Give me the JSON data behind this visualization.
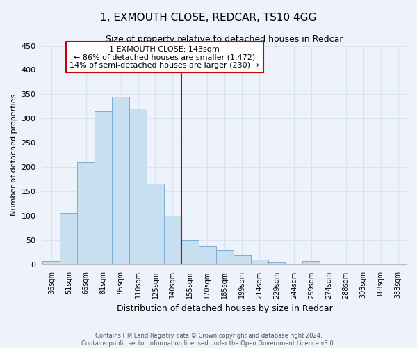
{
  "title": "1, EXMOUTH CLOSE, REDCAR, TS10 4GG",
  "subtitle": "Size of property relative to detached houses in Redcar",
  "xlabel": "Distribution of detached houses by size in Redcar",
  "ylabel": "Number of detached properties",
  "bar_labels": [
    "36sqm",
    "51sqm",
    "66sqm",
    "81sqm",
    "95sqm",
    "110sqm",
    "125sqm",
    "140sqm",
    "155sqm",
    "170sqm",
    "185sqm",
    "199sqm",
    "214sqm",
    "229sqm",
    "244sqm",
    "259sqm",
    "274sqm",
    "288sqm",
    "303sqm",
    "318sqm",
    "333sqm"
  ],
  "bar_values": [
    7,
    105,
    210,
    315,
    345,
    320,
    165,
    99,
    50,
    37,
    29,
    18,
    9,
    3,
    0,
    7,
    0,
    0,
    0,
    0,
    0
  ],
  "bar_color": "#c8dff2",
  "bar_edge_color": "#7aaed4",
  "vline_x_idx": 7,
  "vline_color": "#cc0000",
  "annotation_line1": "1 EXMOUTH CLOSE: 143sqm",
  "annotation_line2": "← 86% of detached houses are smaller (1,472)",
  "annotation_line3": "14% of semi-detached houses are larger (230) →",
  "annotation_box_edgecolor": "#cc0000",
  "ylim": [
    0,
    450
  ],
  "yticks": [
    0,
    50,
    100,
    150,
    200,
    250,
    300,
    350,
    400,
    450
  ],
  "footer1": "Contains HM Land Registry data © Crown copyright and database right 2024.",
  "footer2": "Contains public sector information licensed under the Open Government Licence v3.0.",
  "bg_color": "#edf2fb",
  "grid_color": "#d8e4f5"
}
